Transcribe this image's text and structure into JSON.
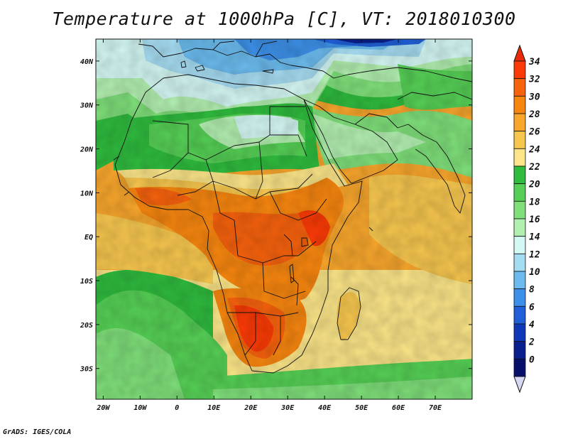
{
  "title": "Temperature at 1000hPa [C], VT: 2018010300",
  "credit": "GrADS: IGES/COLA",
  "map": {
    "lon_ticks": [
      "20W",
      "10W",
      "0",
      "10E",
      "20E",
      "30E",
      "40E",
      "50E",
      "60E",
      "70E"
    ],
    "lat_ticks": [
      "40N",
      "30N",
      "20N",
      "10N",
      "EQ",
      "10S",
      "20S",
      "30S"
    ],
    "lon_range": [
      -22,
      80
    ],
    "lat_range": [
      -37,
      45
    ]
  },
  "colorbar": {
    "labels": [
      "34",
      "32",
      "30",
      "28",
      "26",
      "24",
      "22",
      "20",
      "18",
      "16",
      "14",
      "12",
      "10",
      "8",
      "6",
      "4",
      "2",
      "0"
    ],
    "colors": [
      "#fb3a06",
      "#f7620d",
      "#f7860f",
      "#f8a62c",
      "#f6c64e",
      "#fbe588",
      "#2fbb3e",
      "#55cf55",
      "#7fdf7a",
      "#b2efb0",
      "#d4f8f4",
      "#a6dcf2",
      "#6bbbee",
      "#3d90e8",
      "#205fd8",
      "#0e38b8",
      "#0a1f8e",
      "#06106a"
    ],
    "top_arrow_color": "#e8290a",
    "bottom_arrow_color": "#d8d8f4"
  }
}
